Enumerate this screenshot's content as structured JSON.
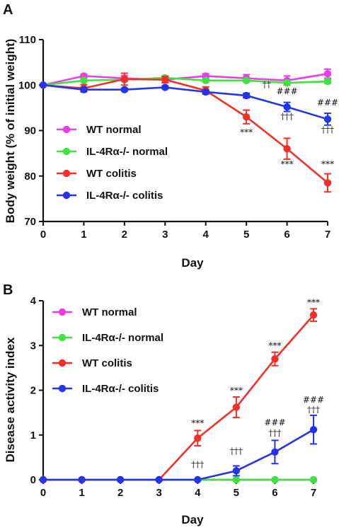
{
  "chart_data": [
    {
      "panel": "A",
      "type": "line",
      "xlabel": "Day",
      "ylabel": "Body weight (% of initial weight)",
      "x": [
        0,
        1,
        2,
        3,
        4,
        5,
        6,
        7
      ],
      "xlim": [
        0,
        7
      ],
      "ylim": [
        70,
        110
      ],
      "xticks": [
        "0",
        "1",
        "2",
        "3",
        "4",
        "5",
        "6",
        "7"
      ],
      "yticks": [
        "70",
        "80",
        "90",
        "100",
        "110"
      ],
      "grid": false,
      "legend_position": "left, lower half",
      "series": [
        {
          "name": "WT normal",
          "color": "#e83ee8",
          "values": [
            100,
            102,
            101.5,
            101.2,
            102,
            101.5,
            101,
            102.5
          ],
          "errors": [
            0,
            0.4,
            0.6,
            0.7,
            0.5,
            0.8,
            1.0,
            1.0
          ]
        },
        {
          "name": "IL-4Rα-/- normal",
          "color": "#3fe33f",
          "values": [
            100,
            101,
            101.2,
            101.6,
            101,
            101,
            100.5,
            100.8
          ],
          "errors": [
            0,
            0.3,
            0.4,
            0.4,
            0.3,
            0.3,
            0.3,
            0.4
          ]
        },
        {
          "name": "WT colitis",
          "color": "#f2302a",
          "values": [
            100,
            99.3,
            101.3,
            101.2,
            98.8,
            93,
            86,
            78.5
          ],
          "errors": [
            0,
            0.8,
            1.3,
            0.7,
            0.8,
            1.5,
            2.3,
            2.0
          ]
        },
        {
          "name": "IL-4Rα-/- colitis",
          "color": "#2434e8",
          "values": [
            100,
            99,
            99,
            99.5,
            98.5,
            97.7,
            95.2,
            92.5
          ],
          "errors": [
            0,
            0.4,
            0.3,
            0.3,
            0.3,
            0.5,
            1.0,
            1.3
          ]
        }
      ],
      "annotations": [
        {
          "x": 5,
          "y": 89,
          "text": "***",
          "color": "#111111"
        },
        {
          "x": 5.5,
          "y": 99.5,
          "text": "††",
          "color": "#111111"
        },
        {
          "x": 6,
          "y": 98,
          "text": "###",
          "color": "#111111"
        },
        {
          "x": 6,
          "y": 92.5,
          "text": "†††",
          "color": "#111111"
        },
        {
          "x": 6,
          "y": 82,
          "text": "***",
          "color": "#111111"
        },
        {
          "x": 7,
          "y": 95.5,
          "text": "###",
          "color": "#111111"
        },
        {
          "x": 7,
          "y": 89.5,
          "text": "†††",
          "color": "#111111"
        },
        {
          "x": 7,
          "y": 82,
          "text": "***",
          "color": "#111111"
        }
      ]
    },
    {
      "panel": "B",
      "type": "line",
      "xlabel": "Day",
      "ylabel": "Disease activity index",
      "x": [
        0,
        1,
        2,
        3,
        4,
        5,
        6,
        7
      ],
      "xlim": [
        0,
        7
      ],
      "ylim": [
        0,
        4
      ],
      "xticks": [
        "0",
        "1",
        "2",
        "3",
        "4",
        "5",
        "6",
        "7"
      ],
      "yticks": [
        "0",
        "1",
        "2",
        "3",
        "4"
      ],
      "grid": false,
      "legend_position": "top-left",
      "series": [
        {
          "name": "WT normal",
          "color": "#e83ee8",
          "values": [
            0,
            0,
            0,
            0,
            0,
            0,
            0,
            0
          ],
          "errors": [
            0,
            0,
            0,
            0,
            0,
            0,
            0,
            0
          ]
        },
        {
          "name": "IL-4Rα-/- normal",
          "color": "#3fe33f",
          "values": [
            0,
            0,
            0,
            0,
            0,
            0,
            0,
            0
          ],
          "errors": [
            0,
            0,
            0,
            0,
            0,
            0,
            0,
            0
          ]
        },
        {
          "name": "WT colitis",
          "color": "#f2302a",
          "values": [
            0,
            0,
            0,
            0,
            0.93,
            1.62,
            2.7,
            3.68
          ],
          "errors": [
            0,
            0,
            0,
            0,
            0.17,
            0.23,
            0.15,
            0.14
          ]
        },
        {
          "name": "IL-4Rα-/- colitis",
          "color": "#2434e8",
          "values": [
            0,
            0,
            0,
            0,
            0,
            0.2,
            0.62,
            1.12
          ],
          "errors": [
            0,
            0,
            0,
            0,
            0,
            0.11,
            0.26,
            0.32
          ]
        }
      ],
      "annotations": [
        {
          "x": 4,
          "y": 1.2,
          "text": "***",
          "color": "#111111"
        },
        {
          "x": 4,
          "y": 0.28,
          "text": "†††",
          "color": "#111111"
        },
        {
          "x": 5,
          "y": 1.93,
          "text": "***",
          "color": "#111111"
        },
        {
          "x": 5,
          "y": 0.58,
          "text": "†††",
          "color": "#111111"
        },
        {
          "x": 6,
          "y": 2.93,
          "text": "***",
          "color": "#111111"
        },
        {
          "x": 6,
          "y": 1.22,
          "text": "###",
          "color": "#111111"
        },
        {
          "x": 6,
          "y": 0.98,
          "text": "†††",
          "color": "#111111"
        },
        {
          "x": 7,
          "y": 3.9,
          "text": "***",
          "color": "#111111"
        },
        {
          "x": 7,
          "y": 1.72,
          "text": "###",
          "color": "#111111"
        },
        {
          "x": 7,
          "y": 1.5,
          "text": "†††",
          "color": "#111111"
        }
      ]
    }
  ]
}
